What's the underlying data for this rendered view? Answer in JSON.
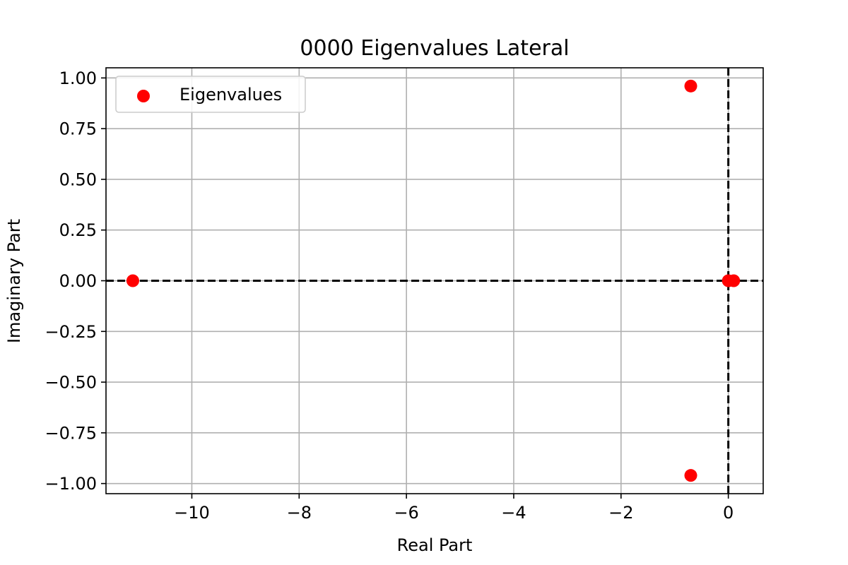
{
  "chart_data": {
    "type": "scatter",
    "title": "0000 Eigenvalues Lateral",
    "xlabel": "Real Part",
    "ylabel": "Imaginary Part",
    "xlim": [
      -11.6,
      0.65
    ],
    "ylim": [
      -1.05,
      1.05
    ],
    "xticks": [
      -10,
      -8,
      -6,
      -4,
      -2,
      0
    ],
    "xtick_labels": [
      "−10",
      "−8",
      "−6",
      "−4",
      "−2",
      "0"
    ],
    "yticks": [
      -1.0,
      -0.75,
      -0.5,
      -0.25,
      0.0,
      0.25,
      0.5,
      0.75,
      1.0
    ],
    "ytick_labels": [
      "−1.00",
      "−0.75",
      "−0.50",
      "−0.25",
      "0.00",
      "0.25",
      "0.50",
      "0.75",
      "1.00"
    ],
    "grid": true,
    "legend_position": "top-left",
    "reference_lines": {
      "x": 0,
      "y": 0,
      "style": "dashed",
      "color": "#000000"
    },
    "series": [
      {
        "name": "Eigenvalues",
        "color": "#ff0000",
        "marker": "circle",
        "x": [
          -11.1,
          -0.7,
          -0.7,
          0.0,
          0.1
        ],
        "y": [
          0.0,
          0.96,
          -0.96,
          0.0,
          0.0
        ]
      }
    ]
  }
}
